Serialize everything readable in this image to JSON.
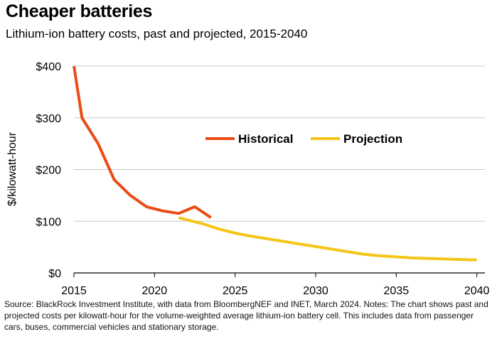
{
  "title": "Cheaper batteries",
  "subtitle": "Lithium-ion battery costs, past and projected, 2015-2040",
  "source": "Source: BlackRock Investment Institute, with data from BloombergNEF and INET, March 2024. Notes: The chart shows past and projected costs per kilowatt-hour for the volume-weighted average lithium-ion battery cell. This includes data from passenger cars, buses, commercial vehicles and stationary storage.",
  "chart_data": {
    "type": "line",
    "title": "Cheaper batteries",
    "subtitle": "Lithium-ion battery costs, past and projected, 2015-2040",
    "xlabel": "",
    "ylabel": "$/kilowatt-hour",
    "xlim": [
      2015,
      2040.5
    ],
    "ylim": [
      0,
      400
    ],
    "x_ticks": [
      2015,
      2020,
      2025,
      2030,
      2035,
      2040
    ],
    "y_ticks": [
      0,
      100,
      200,
      300,
      400
    ],
    "y_tick_labels": [
      "$0",
      "$100",
      "$200",
      "$300",
      "$400"
    ],
    "grid": "horizontal",
    "legend_position": "middle",
    "series": [
      {
        "name": "Historical",
        "color": "#ec4b15",
        "x": [
          2015,
          2015.5,
          2016.5,
          2017.5,
          2018.5,
          2019.5,
          2020.5,
          2021.5,
          2022.5,
          2023.5
        ],
        "y": [
          400,
          300,
          250,
          180,
          150,
          128,
          120,
          115,
          128,
          107
        ]
      },
      {
        "name": "Projection",
        "color": "#f5c518",
        "x": [
          2021.5,
          2023,
          2024,
          2025,
          2026,
          2027,
          2028,
          2029,
          2030,
          2031,
          2032,
          2033,
          2034,
          2035,
          2036,
          2037,
          2038,
          2039,
          2040
        ],
        "y": [
          107,
          95,
          85,
          77,
          71,
          66,
          61,
          56,
          51,
          46,
          41,
          36,
          33,
          31,
          29,
          28,
          27,
          26,
          25
        ]
      }
    ]
  }
}
